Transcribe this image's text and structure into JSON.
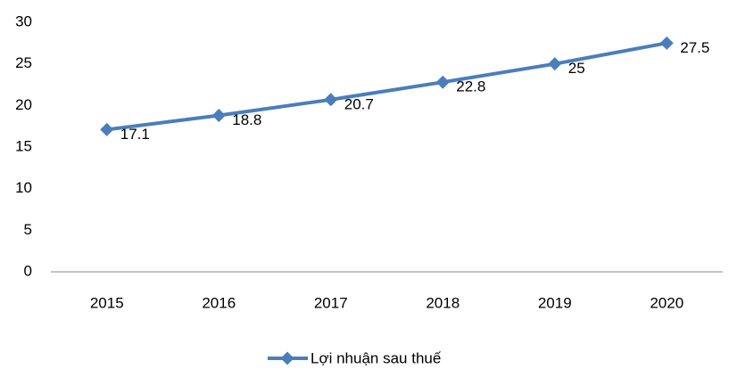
{
  "chart_data": {
    "type": "line",
    "categories": [
      "2015",
      "2016",
      "2017",
      "2018",
      "2019",
      "2020"
    ],
    "series": [
      {
        "name": "Lợi nhuận sau thuế",
        "color": "#4a7ebb",
        "values": [
          17.1,
          18.8,
          20.7,
          22.8,
          25,
          27.5
        ]
      }
    ],
    "ylim": [
      0,
      30
    ],
    "yticks": [
      0,
      5,
      10,
      15,
      20,
      25,
      30
    ],
    "grid": false,
    "legend": "bottom"
  }
}
